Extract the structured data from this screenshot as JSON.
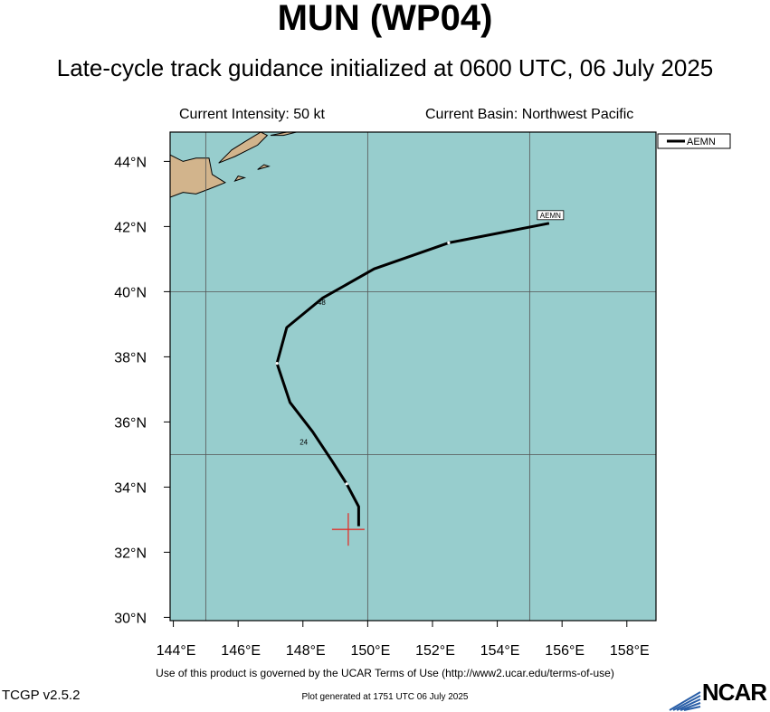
{
  "title": "MUN (WP04)",
  "subtitle": "Late-cycle track guidance initialized at 0600 UTC, 06 July 2025",
  "current_intensity": "Current Intensity: 50 kt",
  "current_basin": "Current Basin: Northwest Pacific",
  "terms": "Use of this product is governed by the UCAR Terms of Use (http://www2.ucar.edu/terms-of-use)",
  "version": "TCGP v2.5.2",
  "generated": "Plot generated at 1751 UTC   06 July 2025",
  "logo_text": "NCAR",
  "colors": {
    "ocean": "#97cdcd",
    "land": "#d2b48c",
    "track": "#000000",
    "current_position": "#e0302a"
  },
  "map": {
    "lon_range": [
      143.9,
      158.9
    ],
    "lat_range": [
      29.9,
      44.9
    ],
    "lon_ticks": [
      144,
      146,
      148,
      150,
      152,
      154,
      156,
      158
    ],
    "lon_tick_labels": [
      "144°E",
      "146°E",
      "148°E",
      "150°E",
      "152°E",
      "154°E",
      "156°E",
      "158°E"
    ],
    "lat_ticks": [
      30,
      32,
      34,
      36,
      38,
      40,
      42,
      44
    ],
    "lat_tick_labels": [
      "30°N",
      "32°N",
      "34°N",
      "36°N",
      "38°N",
      "40°N",
      "42°N",
      "44°N"
    ],
    "grid_lons": [
      145,
      150,
      155
    ],
    "grid_lats": [
      35,
      40
    ]
  },
  "current_position": {
    "lon": 149.4,
    "lat": 32.7
  },
  "tracks": [
    {
      "name": "AEMN",
      "points": [
        [
          149.72,
          32.8
        ],
        [
          149.72,
          33.4
        ],
        [
          149.35,
          34.1
        ],
        [
          148.9,
          34.8
        ],
        [
          148.3,
          35.7
        ],
        [
          147.6,
          36.6
        ],
        [
          147.2,
          37.8
        ],
        [
          147.5,
          38.9
        ],
        [
          148.6,
          39.8
        ],
        [
          150.2,
          40.7
        ],
        [
          152.5,
          41.5
        ],
        [
          155.6,
          42.1
        ]
      ],
      "markers": [
        [
          149.35,
          34.1
        ],
        [
          147.2,
          37.8
        ],
        [
          152.5,
          41.5
        ]
      ],
      "hour_labels": [
        {
          "text": "24",
          "lon": 147.9,
          "lat": 35.3
        },
        {
          "text": "48",
          "lon": 148.45,
          "lat": 39.6
        }
      ]
    }
  ],
  "legend": {
    "entries": [
      "AEMN"
    ]
  },
  "land": [
    {
      "name": "hokkaido",
      "points": [
        [
          143.9,
          42.9
        ],
        [
          144.3,
          43.05
        ],
        [
          144.7,
          43.0
        ],
        [
          145.1,
          43.15
        ],
        [
          145.6,
          43.35
        ],
        [
          145.2,
          43.6
        ],
        [
          145.1,
          44.1
        ],
        [
          144.7,
          44.1
        ],
        [
          144.3,
          44.0
        ],
        [
          143.9,
          44.2
        ]
      ]
    },
    {
      "name": "kunashir",
      "points": [
        [
          145.4,
          43.95
        ],
        [
          145.9,
          44.15
        ],
        [
          146.6,
          44.5
        ],
        [
          146.9,
          44.8
        ],
        [
          146.7,
          44.9
        ],
        [
          146.2,
          44.6
        ],
        [
          145.8,
          44.35
        ]
      ]
    },
    {
      "name": "iturup",
      "points": [
        [
          147.0,
          44.8
        ],
        [
          147.5,
          44.9
        ],
        [
          147.8,
          44.9
        ],
        [
          147.4,
          44.8
        ]
      ]
    },
    {
      "name": "shikotan",
      "points": [
        [
          146.6,
          43.75
        ],
        [
          146.95,
          43.85
        ],
        [
          146.8,
          43.9
        ]
      ]
    },
    {
      "name": "habomai",
      "points": [
        [
          145.9,
          43.4
        ],
        [
          146.2,
          43.5
        ],
        [
          146.0,
          43.55
        ]
      ]
    }
  ]
}
